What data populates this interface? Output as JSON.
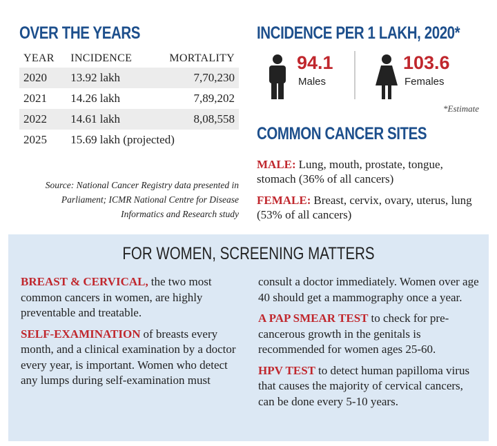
{
  "over_the_years": {
    "title": "OVER THE YEARS",
    "columns": [
      "YEAR",
      "INCIDENCE",
      "MORTALITY"
    ],
    "rows": [
      [
        "2020",
        "13.92 lakh",
        "7,70,230"
      ],
      [
        "2021",
        "14.26 lakh",
        "7,89,202"
      ],
      [
        "2022",
        "14.61 lakh",
        "8,08,558"
      ],
      [
        "2025",
        "15.69 lakh (projected)"
      ]
    ],
    "source": "Source: National Cancer Registry data presented in Parliament; ICMR National Centre for Disease Informatics and Research study"
  },
  "incidence": {
    "title": "INCIDENCE PER 1 LAKH, 2020*",
    "males": {
      "value": 94.1,
      "label": "Males"
    },
    "females": {
      "value": 103.6,
      "label": "Females"
    },
    "note": "*Estimate"
  },
  "common_sites": {
    "title": "COMMON CANCER SITES",
    "items": [
      {
        "label": "MALE:",
        "text": "Lung, mouth, prostate, tongue, stomach (36% of all cancers)"
      },
      {
        "label": "FEMALE:",
        "text": "Breast, cervix, ovary, uterus, lung (53% of all cancers)"
      }
    ]
  },
  "screening": {
    "title": "FOR WOMEN, SCREENING MATTERS",
    "paragraphs": [
      {
        "lead": "BREAST & CERVICAL,",
        "text": "the two most common cancers in women, are highly preventable and treatable."
      },
      {
        "lead": "SELF-EXAMINATION",
        "text": "of breasts every month, and a clinical examination by a doctor every year, is important. Women who detect any lumps during self-examination must consult a doctor immediately. Women over age 40 should get a mammography once a year."
      },
      {
        "lead": "A PAP SMEAR TEST",
        "text": "to check for pre-cancerous growth in the genitals is recommended for women ages 25-60."
      },
      {
        "lead": "HPV TEST",
        "text": "to detect human papilloma virus that causes the majority of cervical cancers, can be done every 5-10 years."
      }
    ]
  }
}
